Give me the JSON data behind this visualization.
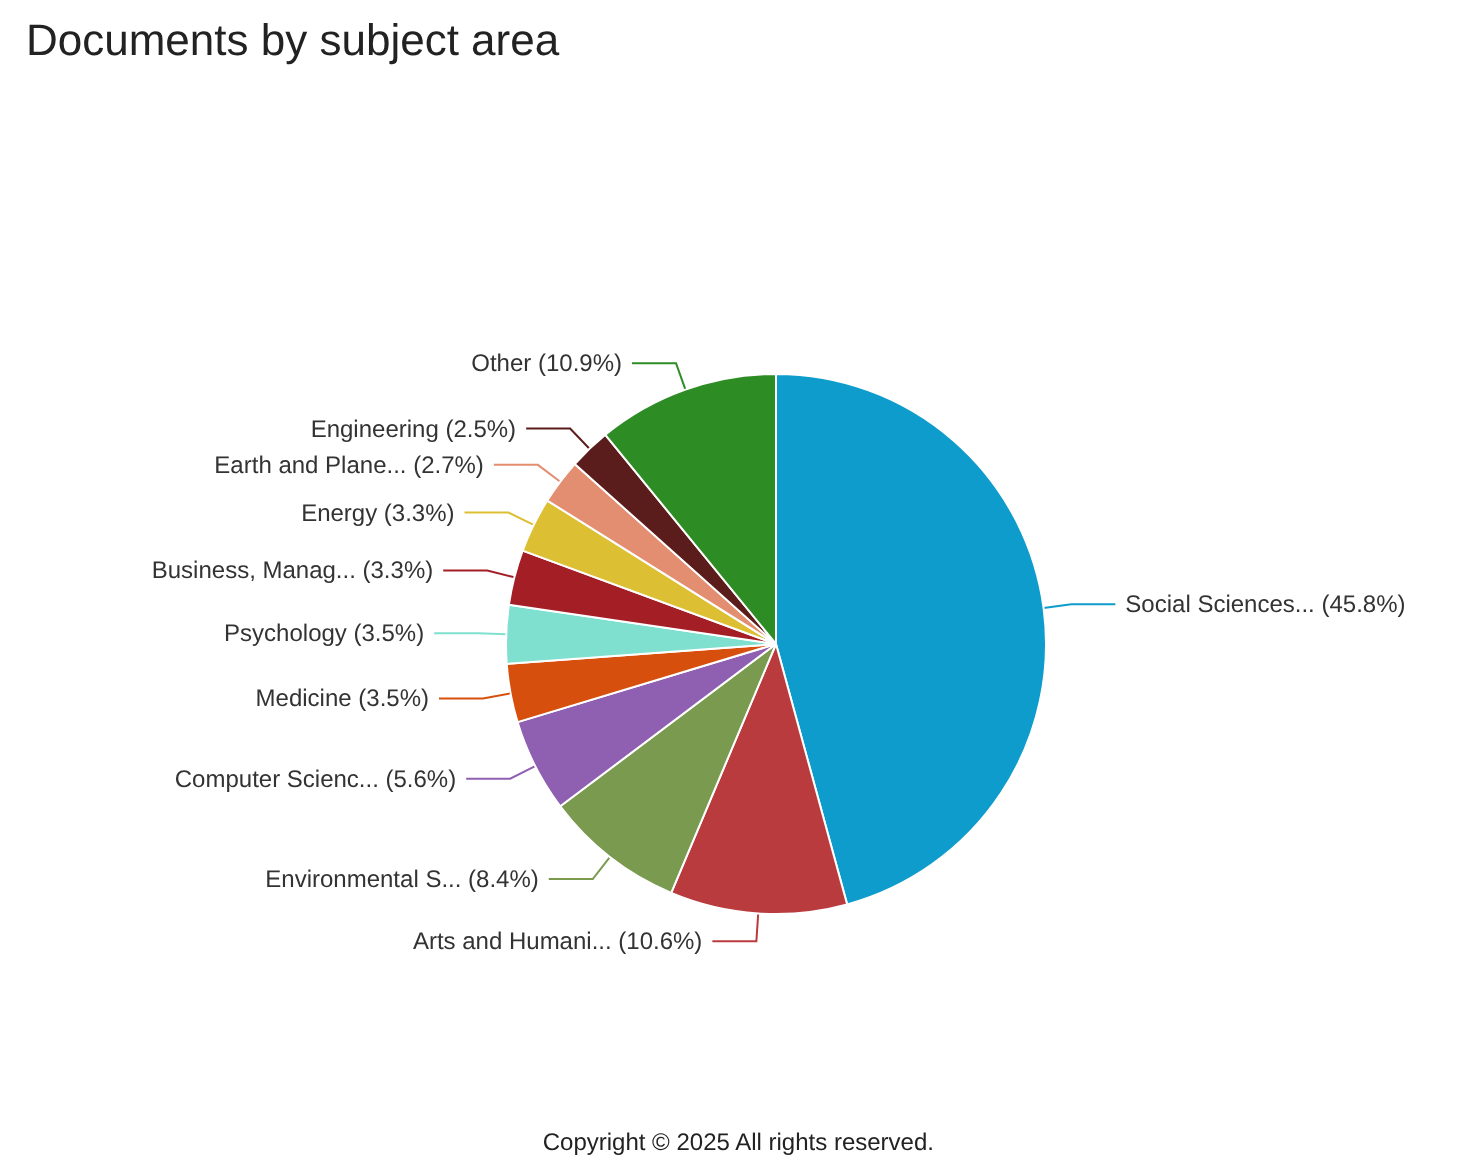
{
  "chart_data": {
    "type": "pie",
    "title": "Documents by subject area",
    "categories": [
      "Social Sciences... (45.8%)",
      "Arts and Humani... (10.6%)",
      "Environmental S... (8.4%)",
      "Computer Scienc... (5.6%)",
      "Medicine (3.5%)",
      "Psychology (3.5%)",
      "Business, Manag... (3.3%)",
      "Energy (3.3%)",
      "Earth and Plane... (2.7%)",
      "Engineering (2.5%)",
      "Other (10.9%)"
    ],
    "values": [
      45.8,
      10.6,
      8.4,
      5.6,
      3.5,
      3.5,
      3.3,
      3.3,
      2.7,
      2.5,
      10.9
    ],
    "colors": [
      "#0d9ccb",
      "#b93b3d",
      "#799a4f",
      "#8f5fb1",
      "#d64f0c",
      "#7fe0cf",
      "#a41e26",
      "#dcbf33",
      "#e38e70",
      "#5b1c1c",
      "#2e8c25"
    ],
    "annotations": [
      "Copyright © 2025 All rights reserved."
    ],
    "legend": false
  }
}
